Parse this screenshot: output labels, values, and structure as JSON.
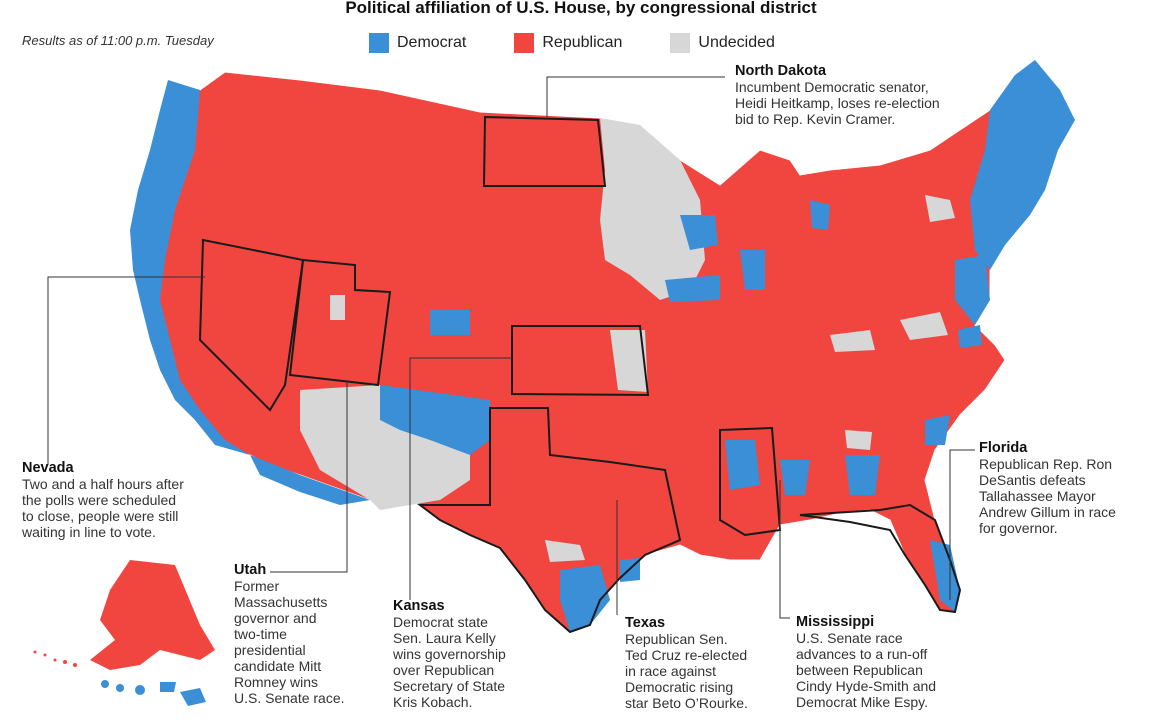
{
  "title": "Political affiliation of U.S. House, by congressional district",
  "timestamp": "Results as of 11:00 p.m. Tuesday",
  "legend": [
    {
      "label": "Democrat",
      "color": "#3a8fd6"
    },
    {
      "label": "Republican",
      "color": "#f0463f"
    },
    {
      "label": "Undecided",
      "color": "#d7d7d7"
    }
  ],
  "annotations": {
    "north_dakota": {
      "head": "North Dakota",
      "body": "Incumbent Democratic senator,\nHeidi Heitkamp, loses re-election\nbid to Rep. Kevin Cramer."
    },
    "nevada": {
      "head": "Nevada",
      "body": "Two and a half hours after\nthe polls were scheduled\nto close, people were still\nwaiting in line to vote."
    },
    "utah": {
      "head": "Utah",
      "body": "Former\nMassachusetts\ngovernor and\ntwo-time\npresidential\ncandidate Mitt\nRomney wins\nU.S. Senate race."
    },
    "kansas": {
      "head": "Kansas",
      "body": "Democrat state\nSen. Laura Kelly\nwins governorship\nover Republican\nSecretary of State\nKris Kobach."
    },
    "texas": {
      "head": "Texas",
      "body": "Republican Sen.\nTed Cruz re-elected\nin race against\nDemocratic rising\nstar Beto O’Rourke."
    },
    "mississippi": {
      "head": "Mississippi",
      "body": "U.S. Senate race\nadvances to a run-off\nbetween Republican\nCindy Hyde-Smith and\nDemocrat Mike Espy."
    },
    "florida": {
      "head": "Florida",
      "body": "Republican Rep. Ron\nDeSantis defeats\nTallahassee Mayor\nAndrew Gillum in race\nfor governor."
    }
  },
  "colors": {
    "democrat": "#3a8fd6",
    "republican": "#f0463f",
    "undecided": "#d7d7d7",
    "border": "#1a1a1a"
  }
}
